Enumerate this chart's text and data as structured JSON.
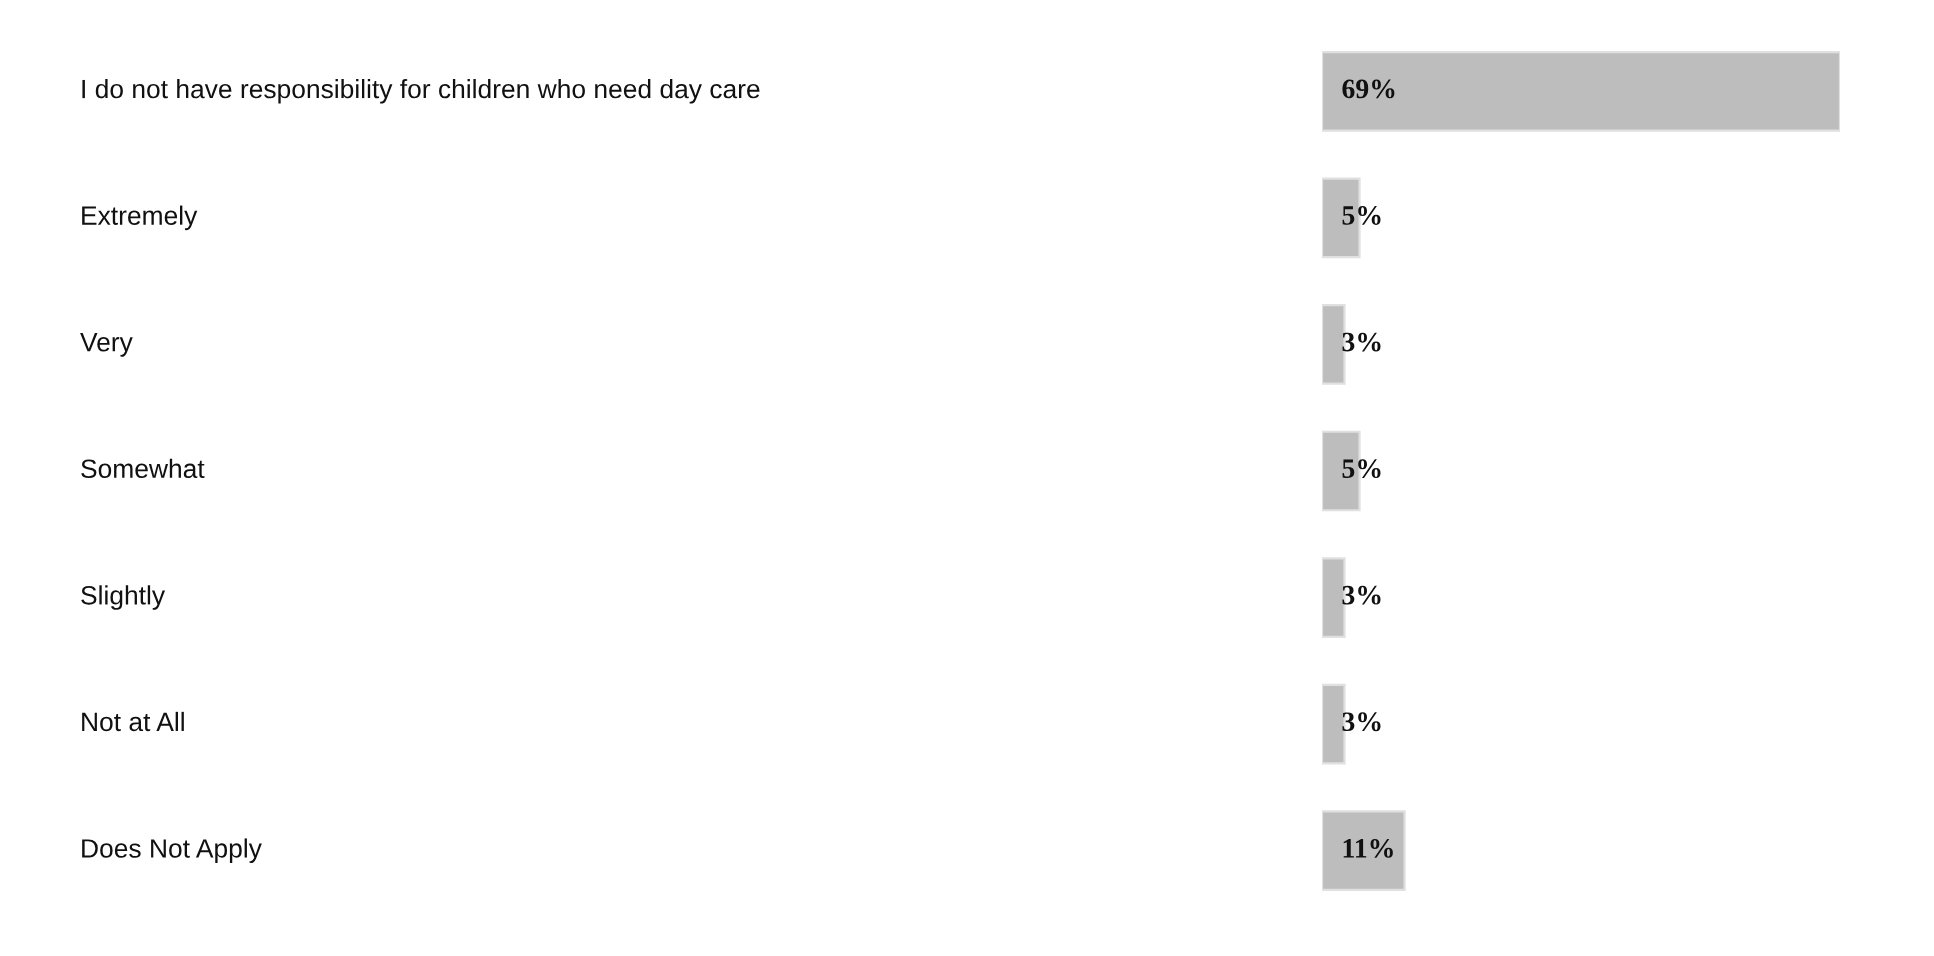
{
  "chart_data": {
    "type": "bar",
    "orientation": "horizontal",
    "categories": [
      "I do not have responsibility for children who need day care",
      "Extremely",
      "Very",
      "Somewhat",
      "Slightly",
      "Not at All",
      "Does Not Apply"
    ],
    "values": [
      69,
      5,
      3,
      5,
      3,
      3,
      11
    ],
    "value_labels": [
      "69%",
      "5%",
      "3%",
      "5%",
      "3%",
      "3%",
      "11%"
    ],
    "color": "#bdbdbd"
  }
}
